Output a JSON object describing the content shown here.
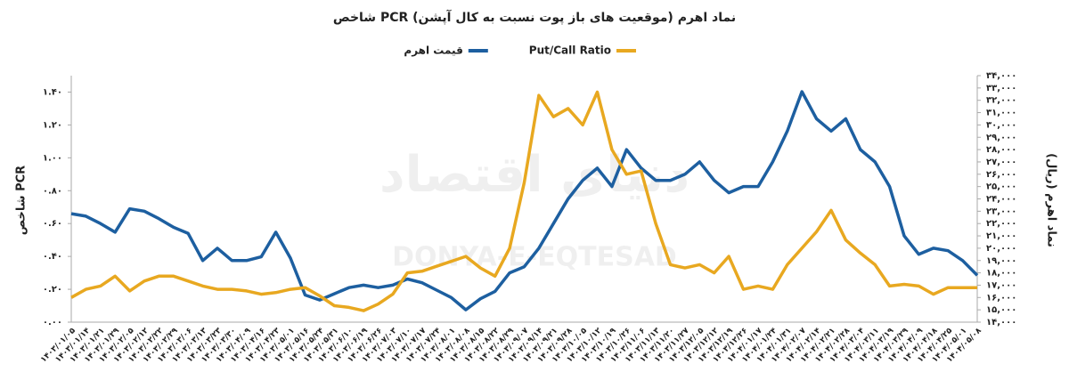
{
  "chart_data": {
    "type": "line",
    "title": "شاخص PCR (موقعیت های باز پوت نسبت به کال آپشن) نماد اهرم",
    "ylabel": "شاخص PCR",
    "y2label": "نماد اهرم (ریال)",
    "watermark": "دنیای اقتصاد",
    "watermark_latin": "DONYA-E-EQTESAD",
    "categories": [
      "۱۴۰۳/۰۱/۰۵",
      "۱۴۰۳/۰۱/۱۴",
      "۱۴۰۳/۰۱/۲۱",
      "۱۴۰۳/۰۱/۲۹",
      "۱۴۰۳/۰۲/۰۵",
      "۱۴۰۳/۰۲/۱۲",
      "۱۴۰۳/۰۲/۲۲",
      "۱۴۰۳/۰۲/۲۹",
      "۱۴۰۳/۰۳/۰۶",
      "۱۴۰۳/۰۳/۱۳",
      "۱۴۰۳/۰۳/۲۳",
      "۱۴۰۳/۰۳/۳۰",
      "۱۴۰۳/۰۴/۰۹",
      "۱۴۰۳/۰۴/۱۶",
      "۱۴۰۳/۰۴/۲۳",
      "۱۴۰۳/۰۵/۰۱",
      "۱۴۰۳/۰۵/۱۶",
      "۱۴۰۳/۰۵/۲۴",
      "۱۴۰۳/۰۵/۳۱",
      "۱۴۰۳/۰۶/۱۰",
      "۱۴۰۳/۰۶/۱۹",
      "۱۴۰۳/۰۶/۲۶",
      "۱۴۰۳/۰۷/۰۳",
      "۱۴۰۳/۰۷/۱۰",
      "۱۴۰۳/۰۷/۱۷",
      "۱۴۰۳/۰۷/۲۴",
      "۱۴۰۳/۰۸/۰۱",
      "۱۴۰۳/۰۸/۰۸",
      "۱۴۰۳/۰۸/۱۵",
      "۱۴۰۳/۰۸/۲۲",
      "۱۴۰۳/۰۸/۲۹",
      "۱۴۰۳/۰۹/۰۷",
      "۱۴۰۳/۰۹/۱۴",
      "۱۴۰۳/۰۹/۲۱",
      "۱۴۰۳/۰۹/۲۸",
      "۱۴۰۳/۱۰/۰۵",
      "۱۴۰۳/۱۰/۱۲",
      "۱۴۰۳/۱۰/۱۹",
      "۱۴۰۳/۱۰/۲۶",
      "۱۴۰۳/۱۱/۰۶",
      "۱۴۰۳/۱۱/۱۳",
      "۱۴۰۳/۱۱/۲۰",
      "۱۴۰۳/۱۱/۲۷",
      "۱۴۰۳/۱۲/۰۵",
      "۱۴۰۳/۱۲/۱۲",
      "۱۴۰۳/۱۲/۱۹",
      "۱۴۰۳/۱۲/۲۶",
      "۱۴۰۴/۰۱/۱۷",
      "۱۴۰۴/۰۱/۲۴",
      "۱۴۰۴/۰۱/۳۱",
      "۱۴۰۴/۰۲/۰۷",
      "۱۴۰۴/۰۲/۱۴",
      "۱۴۰۴/۰۲/۲۱",
      "۱۴۰۴/۰۲/۲۸",
      "۱۴۰۴/۰۳/۰۴",
      "۱۴۰۴/۰۳/۱۱",
      "۱۴۰۴/۰۳/۱۹",
      "۱۴۰۴/۰۳/۲۹",
      "۱۴۰۴/۰۴/۰۹",
      "۱۴۰۴/۰۴/۱۸",
      "۱۴۰۴/۰۴/۲۵",
      "۱۴۰۴/۰۵/۰۱",
      "۱۴۰۴/۰۵/۰۸"
    ],
    "series": [
      {
        "name": "Put/Call Ratio",
        "color": "#e8a820",
        "values": [
          0.15,
          0.2,
          0.22,
          0.28,
          0.19,
          0.25,
          0.28,
          0.28,
          0.25,
          0.22,
          0.2,
          0.2,
          0.19,
          0.17,
          0.18,
          0.2,
          0.21,
          0.16,
          0.1,
          0.09,
          0.07,
          0.11,
          0.17,
          0.3,
          0.31,
          0.34,
          0.37,
          0.4,
          0.33,
          0.28,
          0.45,
          0.85,
          1.38,
          1.25,
          1.3,
          1.2,
          1.4,
          1.05,
          0.9,
          0.92,
          0.6,
          0.35,
          0.33,
          0.35,
          0.3,
          0.4,
          0.2,
          0.22,
          0.2,
          0.35,
          0.45,
          0.55,
          0.68,
          0.5,
          0.42,
          0.35,
          0.22,
          0.23,
          0.22,
          0.17,
          0.21,
          0.21,
          0.21
        ]
      },
      {
        "name": "قیمت اهرم",
        "color": "#1d5fa0",
        "axis": "y2",
        "values": [
          22800,
          22600,
          22000,
          21300,
          23200,
          23000,
          22400,
          21700,
          21200,
          19000,
          20000,
          19000,
          19000,
          19300,
          21300,
          19200,
          16200,
          15800,
          16300,
          16800,
          17000,
          16800,
          17000,
          17500,
          17200,
          16600,
          16000,
          15000,
          15900,
          16500,
          18000,
          18500,
          20000,
          22000,
          24000,
          25500,
          26500,
          25000,
          28000,
          26500,
          25500,
          25500,
          26000,
          27000,
          25500,
          24500,
          25000,
          25000,
          27000,
          29500,
          32700,
          30500,
          29500,
          30500,
          28000,
          27000,
          25000,
          21000,
          19500,
          20000,
          19800,
          19000,
          17800
        ]
      }
    ],
    "ylim": [
      0,
      1.5
    ],
    "yticks": [
      {
        "value": 0,
        "label": "۰.۰۰"
      },
      {
        "value": 0.2,
        "label": "۰.۲۰"
      },
      {
        "value": 0.4,
        "label": "۰.۴۰"
      },
      {
        "value": 0.6,
        "label": "۰.۶۰"
      },
      {
        "value": 0.8,
        "label": "۰.۸۰"
      },
      {
        "value": 1,
        "label": "۱.۰۰"
      },
      {
        "value": 1.2,
        "label": "۱.۲۰"
      },
      {
        "value": 1.4,
        "label": "۱.۴۰"
      }
    ],
    "y2lim": [
      14000,
      34000
    ],
    "y2ticks": [
      {
        "value": 14000,
        "label": "۱۴,۰۰۰"
      },
      {
        "value": 15000,
        "label": "۱۵,۰۰۰"
      },
      {
        "value": 16000,
        "label": "۱۶,۰۰۰"
      },
      {
        "value": 17000,
        "label": "۱۷,۰۰۰"
      },
      {
        "value": 18000,
        "label": "۱۸,۰۰۰"
      },
      {
        "value": 19000,
        "label": "۱۹,۰۰۰"
      },
      {
        "value": 20000,
        "label": "۲۰,۰۰۰"
      },
      {
        "value": 21000,
        "label": "۲۱,۰۰۰"
      },
      {
        "value": 22000,
        "label": "۲۲,۰۰۰"
      },
      {
        "value": 23000,
        "label": "۲۳,۰۰۰"
      },
      {
        "value": 24000,
        "label": "۲۴,۰۰۰"
      },
      {
        "value": 25000,
        "label": "۲۵,۰۰۰"
      },
      {
        "value": 26000,
        "label": "۲۶,۰۰۰"
      },
      {
        "value": 27000,
        "label": "۲۷,۰۰۰"
      },
      {
        "value": 28000,
        "label": "۲۸,۰۰۰"
      },
      {
        "value": 29000,
        "label": "۲۹,۰۰۰"
      },
      {
        "value": 30000,
        "label": "۳۰,۰۰۰"
      },
      {
        "value": 31000,
        "label": "۳۱,۰۰۰"
      },
      {
        "value": 32000,
        "label": "۳۲,۰۰۰"
      },
      {
        "value": 33000,
        "label": "۳۳,۰۰۰"
      },
      {
        "value": 34000,
        "label": "۳۴,۰۰۰"
      }
    ],
    "grid": false
  }
}
